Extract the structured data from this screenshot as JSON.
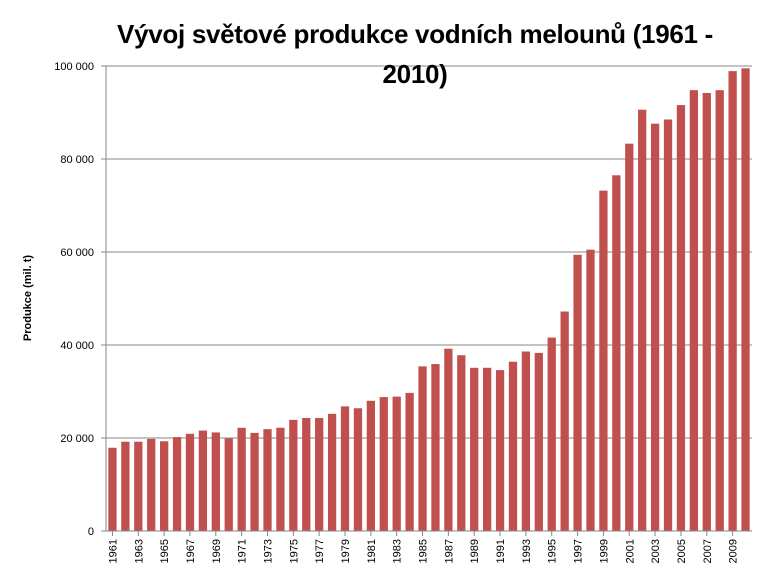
{
  "chart_data": {
    "type": "bar",
    "title": "Vývoj světové produkce vodních melounů (1961 - 2010)",
    "xlabel": "",
    "ylabel": "Produkce (mil. t)",
    "ylim": [
      0,
      100000
    ],
    "yticks": [
      0,
      20000,
      40000,
      60000,
      80000,
      100000
    ],
    "ytick_labels": [
      "0",
      "20 000",
      "40 000",
      "60 000",
      "80 000",
      "100 000"
    ],
    "grid": true,
    "legend": "none",
    "bar_color": "#c0504d",
    "categories": [
      "1961",
      "1962",
      "1963",
      "1964",
      "1965",
      "1966",
      "1967",
      "1968",
      "1969",
      "1970",
      "1971",
      "1972",
      "1973",
      "1974",
      "1975",
      "1976",
      "1977",
      "1978",
      "1979",
      "1980",
      "1981",
      "1982",
      "1983",
      "1984",
      "1985",
      "1986",
      "1987",
      "1988",
      "1989",
      "1990",
      "1991",
      "1992",
      "1993",
      "1994",
      "1995",
      "1996",
      "1997",
      "1998",
      "1999",
      "2000",
      "2001",
      "2002",
      "2003",
      "2004",
      "2005",
      "2006",
      "2007",
      "2008",
      "2009",
      "2010"
    ],
    "values": [
      17900,
      19200,
      19200,
      19800,
      19300,
      20200,
      20900,
      21600,
      21200,
      19900,
      22200,
      21100,
      21900,
      22200,
      23900,
      24300,
      24300,
      25200,
      26800,
      26400,
      28000,
      28800,
      28900,
      29700,
      35400,
      35900,
      39200,
      37800,
      35100,
      35100,
      34600,
      36400,
      38600,
      38300,
      41600,
      47200,
      59400,
      60500,
      73200,
      76500,
      83300,
      90600,
      87600,
      88500,
      91600,
      94800,
      94200,
      94800,
      98900,
      99500
    ],
    "xtick_labels": [
      "1961",
      "1963",
      "1965",
      "1967",
      "1969",
      "1971",
      "1973",
      "1975",
      "1977",
      "1979",
      "1981",
      "1983",
      "1985",
      "1987",
      "1989",
      "1991",
      "1993",
      "1995",
      "1997",
      "1999",
      "2001",
      "2003",
      "2005",
      "2007",
      "2009"
    ]
  }
}
